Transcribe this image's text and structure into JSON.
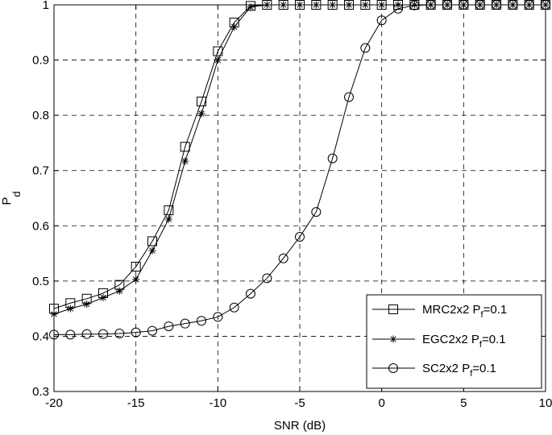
{
  "chart_data": {
    "type": "line",
    "xlabel": "SNR (dB)",
    "ylabel": {
      "main": "P",
      "sub": "d"
    },
    "xlim": [
      -20,
      10
    ],
    "ylim": [
      0.3,
      1
    ],
    "xticks": [
      -20,
      -15,
      -10,
      -5,
      0,
      5,
      10
    ],
    "yticks": [
      0.3,
      0.4,
      0.5,
      0.6,
      0.7,
      0.8,
      0.9,
      1
    ],
    "xtick_labels": [
      "-20",
      "-15",
      "-10",
      "-5",
      "0",
      "5",
      "10"
    ],
    "ytick_labels": [
      "0.3",
      "0.4",
      "0.5",
      "0.6",
      "0.7",
      "0.8",
      "0.9",
      "1"
    ],
    "grid": "dashed",
    "legend_position": "bottom-right",
    "x": [
      -20,
      -19,
      -18,
      -17,
      -16,
      -15,
      -14,
      -13,
      -12,
      -11,
      -10,
      -9,
      -8,
      -7,
      -6,
      -5,
      -4,
      -3,
      -2,
      -1,
      0,
      1,
      2,
      3,
      4,
      5,
      6,
      7,
      8,
      9,
      10
    ],
    "series": [
      {
        "name": "MRC2x2 P",
        "name_sub": "f",
        "name_suffix": "=0.1",
        "marker": "square",
        "values": [
          0.45,
          0.46,
          0.468,
          0.478,
          0.493,
          0.526,
          0.572,
          0.628,
          0.743,
          0.825,
          0.916,
          0.968,
          0.998,
          1,
          1,
          1,
          1,
          1,
          1,
          1,
          1,
          1,
          1,
          1,
          1,
          1,
          1,
          1,
          1,
          1,
          1
        ]
      },
      {
        "name": "EGC2x2 P",
        "name_sub": "f",
        "name_suffix": "=0.1",
        "marker": "star",
        "values": [
          0.44,
          0.45,
          0.458,
          0.47,
          0.482,
          0.503,
          0.555,
          0.612,
          0.717,
          0.803,
          0.9,
          0.96,
          0.996,
          1,
          1,
          1,
          1,
          1,
          1,
          1,
          1,
          1,
          1,
          1,
          1,
          1,
          1,
          1,
          1,
          1,
          1
        ]
      },
      {
        "name": "SC2x2 P",
        "name_sub": "f",
        "name_suffix": "=0.1",
        "marker": "circle",
        "values": [
          0.403,
          0.403,
          0.404,
          0.404,
          0.405,
          0.407,
          0.41,
          0.418,
          0.423,
          0.428,
          0.435,
          0.452,
          0.477,
          0.505,
          0.541,
          0.58,
          0.625,
          0.722,
          0.833,
          0.922,
          0.972,
          0.993,
          0.999,
          1,
          1,
          1,
          1,
          1,
          1,
          1,
          1
        ]
      }
    ]
  }
}
